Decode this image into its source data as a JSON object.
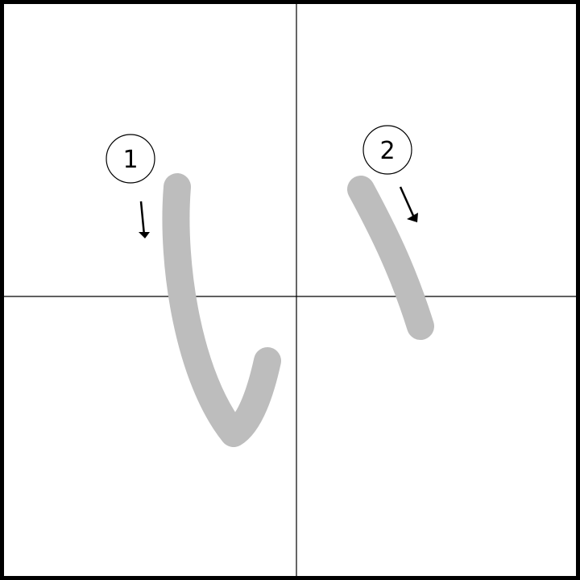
{
  "diagram": {
    "kind": "stroke-order",
    "colors": {
      "frame": "#000000",
      "grid": "#000000",
      "stroke": "#bdbdbd",
      "marker": "#000000",
      "background": "#ffffff"
    },
    "strokes": [
      {
        "number": "1",
        "direction": "down"
      },
      {
        "number": "2",
        "direction": "down-right"
      }
    ]
  }
}
